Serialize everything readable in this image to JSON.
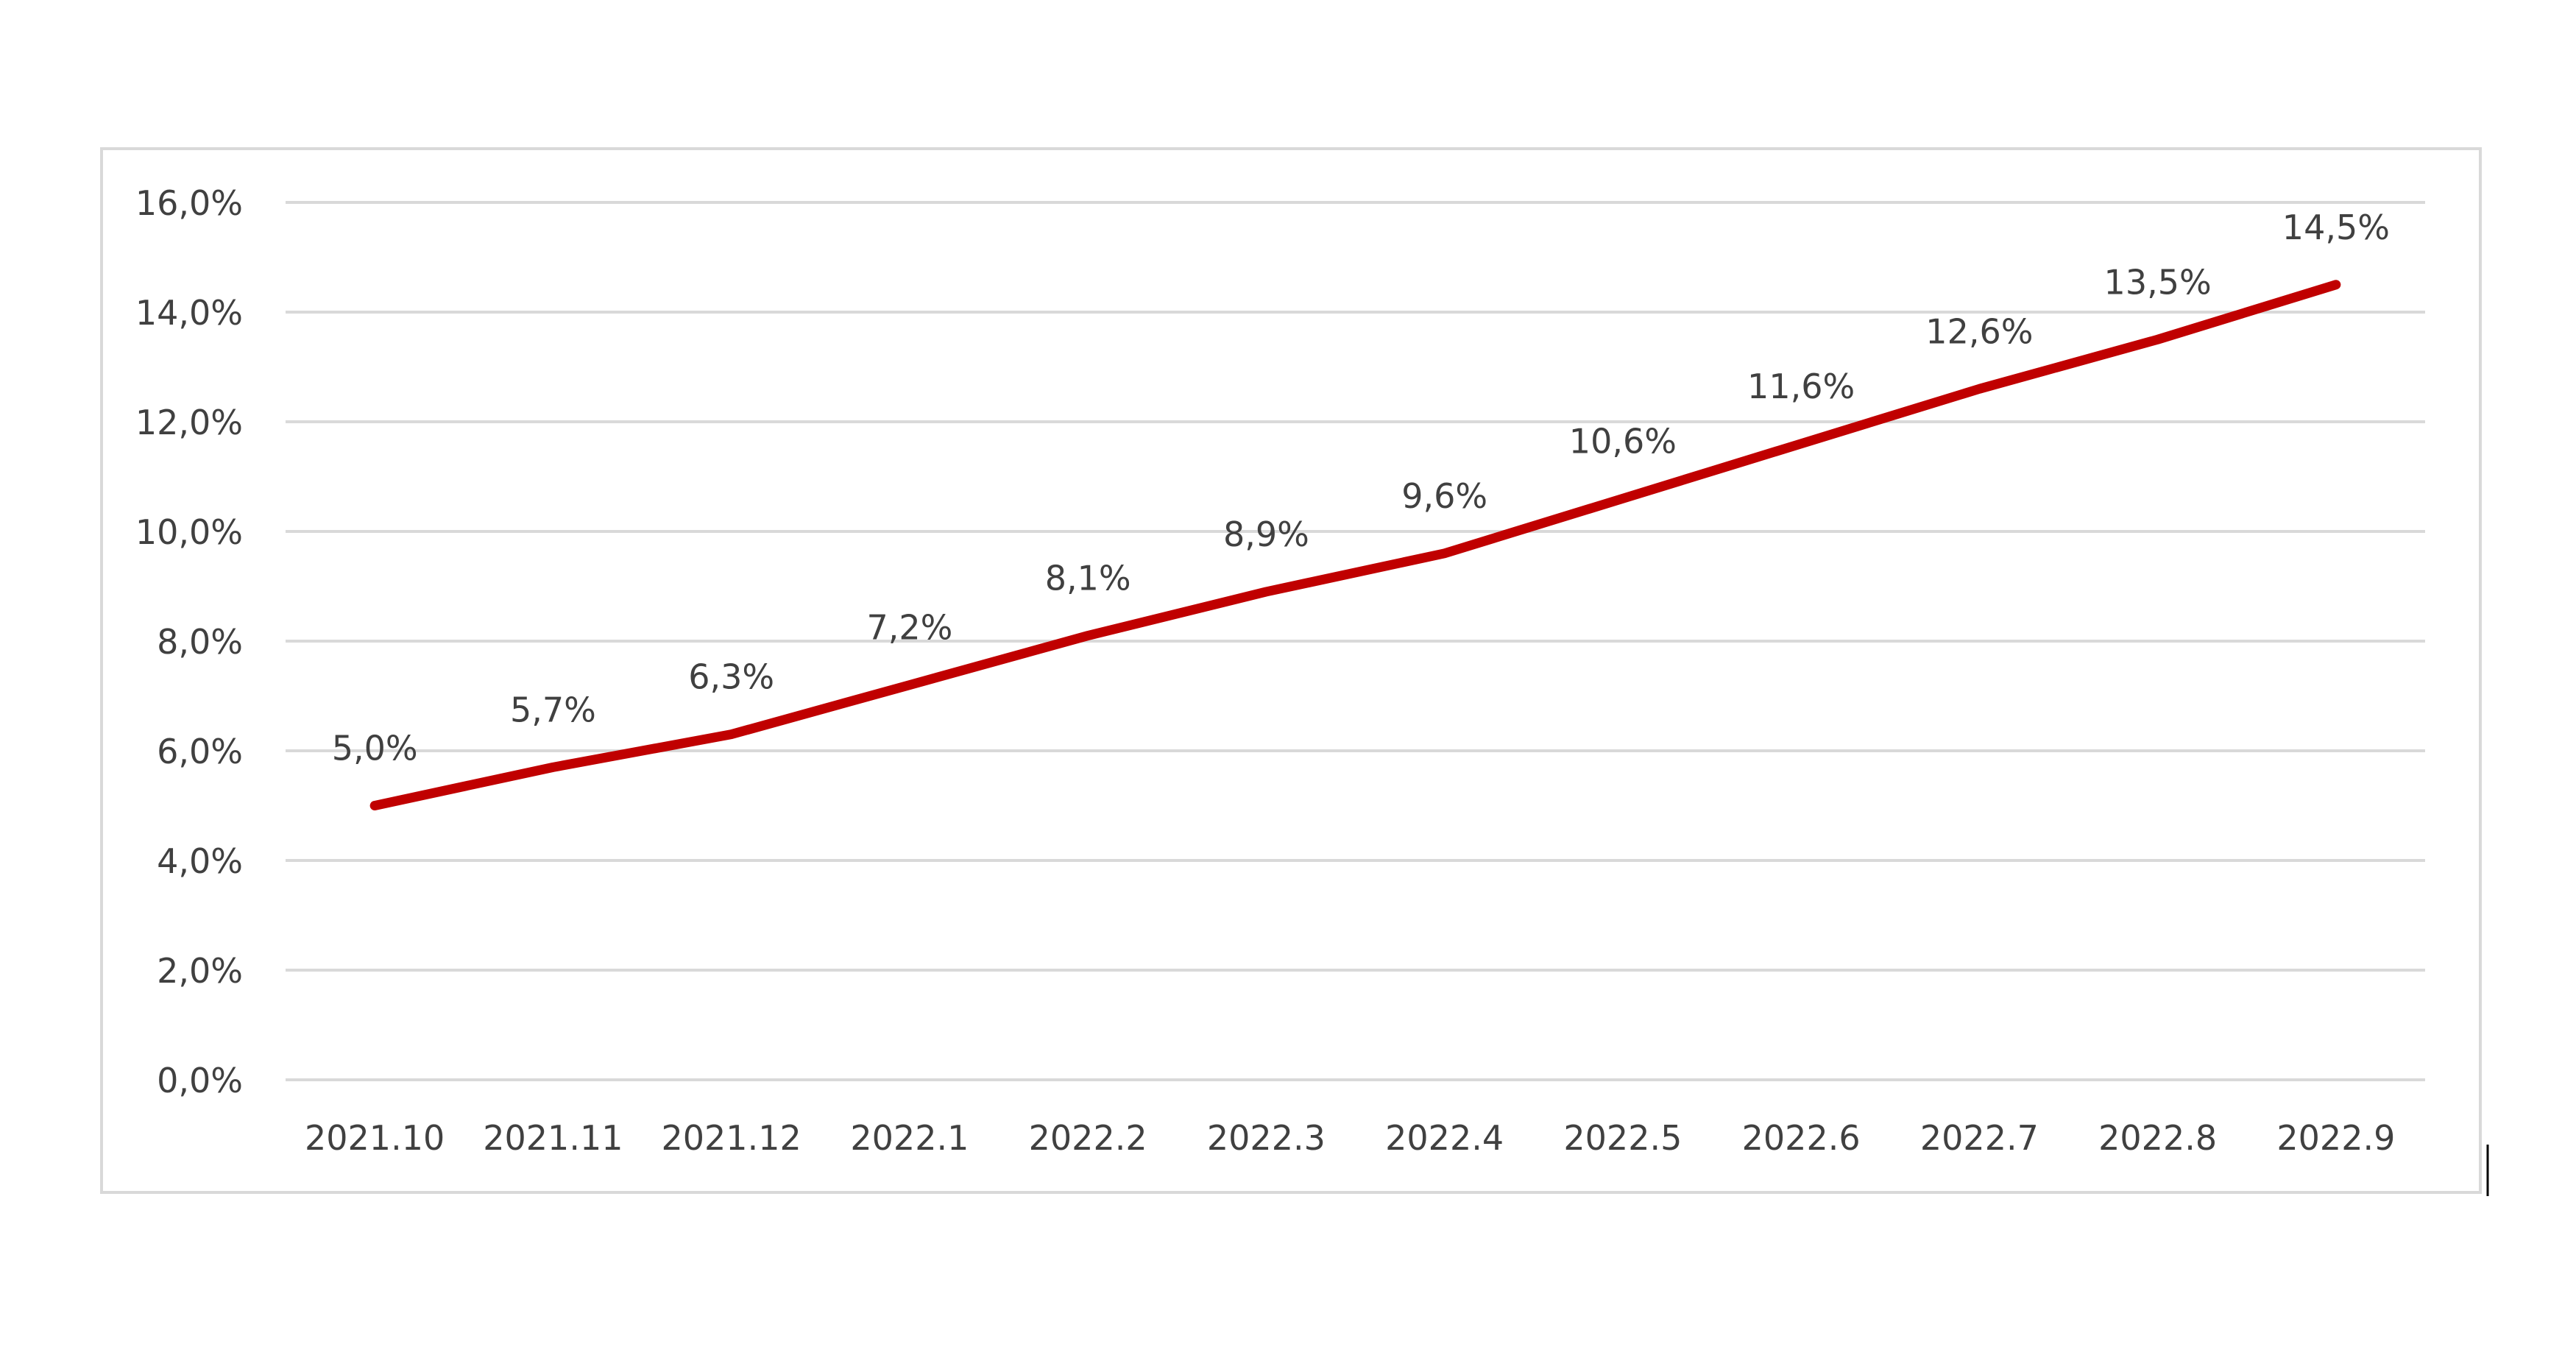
{
  "chart_data": {
    "type": "line",
    "title": "",
    "xlabel": "",
    "ylabel": "",
    "categories": [
      "2021.10",
      "2021.11",
      "2021.12",
      "2022.1",
      "2022.2",
      "2022.3",
      "2022.4",
      "2022.5",
      "2022.6",
      "2022.7",
      "2022.8",
      "2022.9"
    ],
    "series": [
      {
        "values": [
          5.0,
          5.7,
          6.3,
          7.2,
          8.1,
          8.9,
          9.6,
          10.6,
          11.6,
          12.6,
          13.5,
          14.5
        ],
        "data_labels": [
          "5,0%",
          "5,7%",
          "6,3%",
          "7,2%",
          "8,1%",
          "8,9%",
          "9,6%",
          "10,6%",
          "11,6%",
          "12,6%",
          "13,5%",
          "14,5%"
        ],
        "color": "#C00000"
      }
    ],
    "y_ticks": [
      0,
      2,
      4,
      6,
      8,
      10,
      12,
      14,
      16
    ],
    "y_tick_labels": [
      "0,0%",
      "2,0%",
      "4,0%",
      "6,0%",
      "8,0%",
      "10,0%",
      "12,0%",
      "14,0%",
      "16,0%"
    ],
    "ylim": [
      0,
      16
    ],
    "grid": true,
    "legend": "none"
  }
}
